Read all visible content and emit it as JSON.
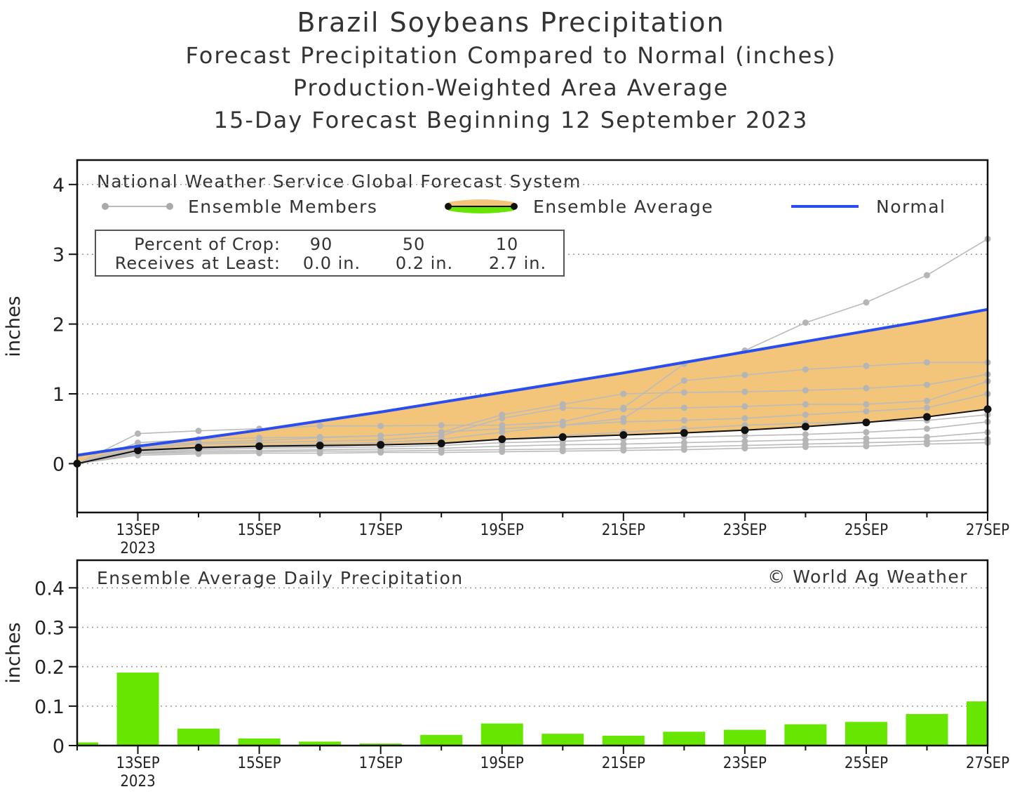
{
  "titles": {
    "title": "Brazil Soybeans Precipitation",
    "subtitle1": "Forecast Precipitation Compared to Normal (inches)",
    "subtitle2": "Production-Weighted Area Average",
    "subtitle3": "15-Day Forecast Beginning 12 September 2023"
  },
  "chart_data": [
    {
      "type": "line",
      "ylabel": "inches",
      "ylim": [
        -0.7,
        4.35
      ],
      "yticks": [
        0,
        1,
        2,
        3,
        4
      ],
      "grid": "dotted horizontal",
      "x": [
        "12SEP",
        "13SEP",
        "14SEP",
        "15SEP",
        "16SEP",
        "17SEP",
        "18SEP",
        "19SEP",
        "20SEP",
        "21SEP",
        "22SEP",
        "23SEP",
        "24SEP",
        "25SEP",
        "26SEP",
        "27SEP"
      ],
      "xtick_labels": [
        {
          "at": "13SEP",
          "text": "13SEP",
          "sub": "2023"
        },
        {
          "at": "15SEP",
          "text": "15SEP"
        },
        {
          "at": "17SEP",
          "text": "17SEP"
        },
        {
          "at": "19SEP",
          "text": "19SEP"
        },
        {
          "at": "21SEP",
          "text": "21SEP"
        },
        {
          "at": "23SEP",
          "text": "23SEP"
        },
        {
          "at": "25SEP",
          "text": "25SEP"
        },
        {
          "at": "27SEP",
          "text": "27SEP"
        }
      ],
      "annotation": "National Weather Service Global Forecast System",
      "legend": {
        "members_label": "Ensemble Members",
        "average_label": "Ensemble Average",
        "normal_label": "Normal",
        "placement": "top"
      },
      "crop_table": {
        "row1_label": "Percent of Crop:",
        "row2_label": "Receives at Least:",
        "percents": [
          "90",
          "50",
          "10"
        ],
        "amounts": [
          "0.0 in.",
          "0.2 in.",
          "2.7 in."
        ]
      },
      "colors": {
        "normal": "#2a4df0",
        "average": "#111111",
        "members": "#bbbbbb",
        "deficit_fill": "#f3c57a",
        "surplus_fill": "#66e600"
      },
      "series": [
        {
          "name": "Normal",
          "values": [
            0.12,
            0.25,
            0.36,
            0.48,
            0.61,
            0.74,
            0.88,
            1.02,
            1.16,
            1.3,
            1.45,
            1.6,
            1.75,
            1.9,
            2.05,
            2.21
          ]
        },
        {
          "name": "Ensemble Average",
          "values": [
            0.0,
            0.19,
            0.23,
            0.25,
            0.26,
            0.27,
            0.29,
            0.35,
            0.38,
            0.41,
            0.44,
            0.48,
            0.53,
            0.59,
            0.67,
            0.78
          ]
        },
        {
          "values": [
            0.0,
            0.43,
            0.47,
            0.5,
            0.54,
            0.54,
            0.55,
            0.55,
            0.6,
            0.8,
            1.43,
            1.62,
            2.02,
            2.31,
            2.7,
            3.22
          ]
        },
        {
          "values": [
            0.0,
            0.3,
            0.35,
            0.37,
            0.38,
            0.4,
            0.45,
            0.5,
            0.55,
            0.65,
            1.19,
            1.27,
            1.35,
            1.4,
            1.45,
            1.45
          ]
        },
        {
          "values": [
            0.0,
            0.25,
            0.3,
            0.33,
            0.37,
            0.4,
            0.45,
            0.7,
            0.85,
            1.0,
            1.02,
            1.03,
            1.05,
            1.08,
            1.13,
            1.28
          ]
        },
        {
          "values": [
            0.0,
            0.22,
            0.28,
            0.3,
            0.32,
            0.34,
            0.4,
            0.65,
            0.8,
            0.78,
            0.8,
            0.82,
            0.85,
            0.85,
            0.9,
            1.18
          ]
        },
        {
          "values": [
            0.0,
            0.2,
            0.24,
            0.26,
            0.28,
            0.3,
            0.35,
            0.45,
            0.55,
            0.6,
            0.62,
            0.65,
            0.7,
            0.75,
            0.8,
            1.0
          ]
        },
        {
          "values": [
            0.0,
            0.18,
            0.22,
            0.24,
            0.25,
            0.27,
            0.3,
            0.35,
            0.4,
            0.45,
            0.5,
            0.55,
            0.58,
            0.6,
            0.62,
            0.7
          ]
        },
        {
          "values": [
            0.0,
            0.16,
            0.2,
            0.22,
            0.23,
            0.24,
            0.26,
            0.3,
            0.32,
            0.35,
            0.38,
            0.4,
            0.42,
            0.45,
            0.5,
            0.6
          ]
        },
        {
          "values": [
            0.0,
            0.15,
            0.18,
            0.19,
            0.2,
            0.21,
            0.22,
            0.25,
            0.27,
            0.28,
            0.3,
            0.32,
            0.34,
            0.36,
            0.38,
            0.45
          ]
        },
        {
          "values": [
            0.0,
            0.14,
            0.16,
            0.17,
            0.18,
            0.18,
            0.19,
            0.2,
            0.21,
            0.22,
            0.24,
            0.26,
            0.28,
            0.3,
            0.32,
            0.35
          ]
        },
        {
          "values": [
            0.0,
            0.12,
            0.14,
            0.15,
            0.15,
            0.16,
            0.16,
            0.17,
            0.18,
            0.19,
            0.2,
            0.22,
            0.24,
            0.25,
            0.28,
            0.3
          ]
        }
      ]
    },
    {
      "type": "bar",
      "title": "Ensemble Average Daily Precipitation",
      "annotation": "© World Ag Weather",
      "ylabel": "inches",
      "ylim": [
        0,
        0.47
      ],
      "yticks": [
        0,
        0.1,
        0.2,
        0.3,
        0.4
      ],
      "ytick_labels": [
        "0",
        "0.1",
        "0.2",
        "0.3",
        "0.4"
      ],
      "grid": "dotted horizontal",
      "bar_color": "#66e600",
      "categories": [
        "12SEP",
        "13SEP",
        "14SEP",
        "15SEP",
        "16SEP",
        "17SEP",
        "18SEP",
        "19SEP",
        "20SEP",
        "21SEP",
        "22SEP",
        "23SEP",
        "24SEP",
        "25SEP",
        "26SEP",
        "27SEP"
      ],
      "values": [
        0.008,
        0.185,
        0.043,
        0.018,
        0.01,
        0.005,
        0.027,
        0.056,
        0.03,
        0.025,
        0.035,
        0.04,
        0.054,
        0.06,
        0.08,
        0.112
      ],
      "xtick_labels": [
        {
          "at": "13SEP",
          "text": "13SEP",
          "sub": "2023"
        },
        {
          "at": "15SEP",
          "text": "15SEP"
        },
        {
          "at": "17SEP",
          "text": "17SEP"
        },
        {
          "at": "19SEP",
          "text": "19SEP"
        },
        {
          "at": "21SEP",
          "text": "21SEP"
        },
        {
          "at": "23SEP",
          "text": "23SEP"
        },
        {
          "at": "25SEP",
          "text": "25SEP"
        },
        {
          "at": "27SEP",
          "text": "27SEP"
        }
      ]
    }
  ]
}
